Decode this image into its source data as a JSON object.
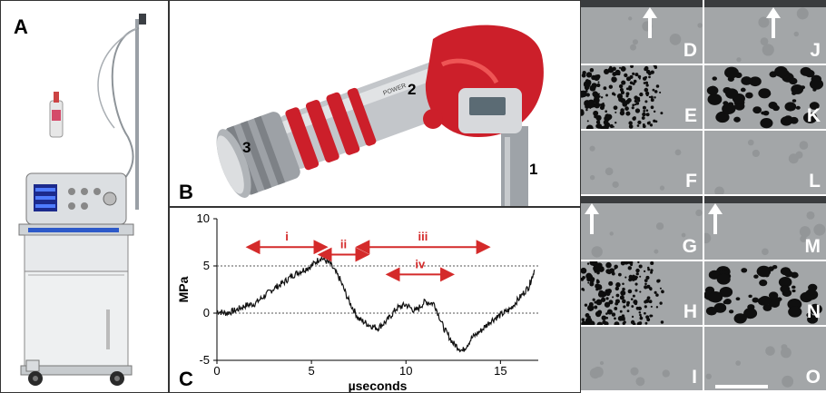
{
  "panels": {
    "a": {
      "label": "A"
    },
    "b": {
      "label": "B",
      "parts": [
        "1",
        "2",
        "3"
      ],
      "device_text": "POWER"
    },
    "c": {
      "label": "C"
    }
  },
  "chart_data": {
    "type": "line",
    "xlabel": "µseconds",
    "ylabel": "MPa",
    "xlim": [
      0,
      17
    ],
    "ylim": [
      -5,
      10
    ],
    "xticks": [
      0,
      5,
      10,
      15
    ],
    "yticks": [
      -5,
      0,
      5,
      10
    ],
    "reference_lines": [
      0,
      5
    ],
    "grid": false,
    "series": [
      {
        "x": [
          0,
          0.5,
          1.0,
          1.5,
          2.0,
          2.5,
          3.0,
          3.5,
          4.0,
          4.5,
          5.0,
          5.5,
          6.0,
          6.5,
          7.0,
          7.5,
          8.0,
          8.5,
          9.0,
          9.5,
          10.0,
          10.5,
          11.0,
          11.5,
          12.0,
          12.5,
          13.0,
          13.5,
          14.0,
          14.5,
          15.0,
          15.5,
          16.0,
          16.5,
          16.8
        ],
        "y": [
          0.2,
          0.0,
          0.3,
          0.8,
          1.0,
          1.8,
          2.6,
          3.2,
          4.0,
          4.5,
          5.0,
          5.9,
          5.2,
          3.6,
          1.2,
          -0.6,
          -1.2,
          -1.6,
          -0.8,
          0.5,
          0.9,
          0.2,
          1.2,
          1.0,
          -1.6,
          -3.2,
          -4.0,
          -2.6,
          -1.8,
          -0.8,
          -0.2,
          0.4,
          1.6,
          2.8,
          4.6
        ]
      }
    ],
    "annotations": [
      {
        "label": "i",
        "x_start": 1.9,
        "x_end": 5.5,
        "y": 7.0
      },
      {
        "label": "ii",
        "x_start": 5.7,
        "x_end": 7.7,
        "y": 6.2
      },
      {
        "label": "iii",
        "x_start": 7.7,
        "x_end": 14.1,
        "y": 7.0
      },
      {
        "label": "iv",
        "x_start": 9.3,
        "x_end": 12.2,
        "y": 4.1
      }
    ],
    "annotation_color": "#d42a2a"
  },
  "grid": {
    "cells": [
      {
        "id": "D",
        "col": 0,
        "row": 0,
        "kind": "plain",
        "arrow": true
      },
      {
        "id": "E",
        "col": 0,
        "row": 1,
        "kind": "dense"
      },
      {
        "id": "F",
        "col": 0,
        "row": 2,
        "kind": "plain"
      },
      {
        "id": "G",
        "col": 0,
        "row": 3,
        "kind": "plain",
        "arrow": true
      },
      {
        "id": "H",
        "col": 0,
        "row": 4,
        "kind": "dense"
      },
      {
        "id": "I",
        "col": 0,
        "row": 5,
        "kind": "plain"
      },
      {
        "id": "J",
        "col": 1,
        "row": 0,
        "kind": "plain",
        "arrow": true
      },
      {
        "id": "K",
        "col": 1,
        "row": 1,
        "kind": "bubbles"
      },
      {
        "id": "L",
        "col": 1,
        "row": 2,
        "kind": "plain"
      },
      {
        "id": "M",
        "col": 1,
        "row": 3,
        "kind": "plain",
        "arrow": true
      },
      {
        "id": "N",
        "col": 1,
        "row": 4,
        "kind": "bubbles"
      },
      {
        "id": "O",
        "col": 1,
        "row": 5,
        "kind": "plain"
      }
    ]
  },
  "colors": {
    "accent_red": "#d42a2a",
    "device_red": "#cc1f2a",
    "device_grey": "#b9bcc0"
  }
}
